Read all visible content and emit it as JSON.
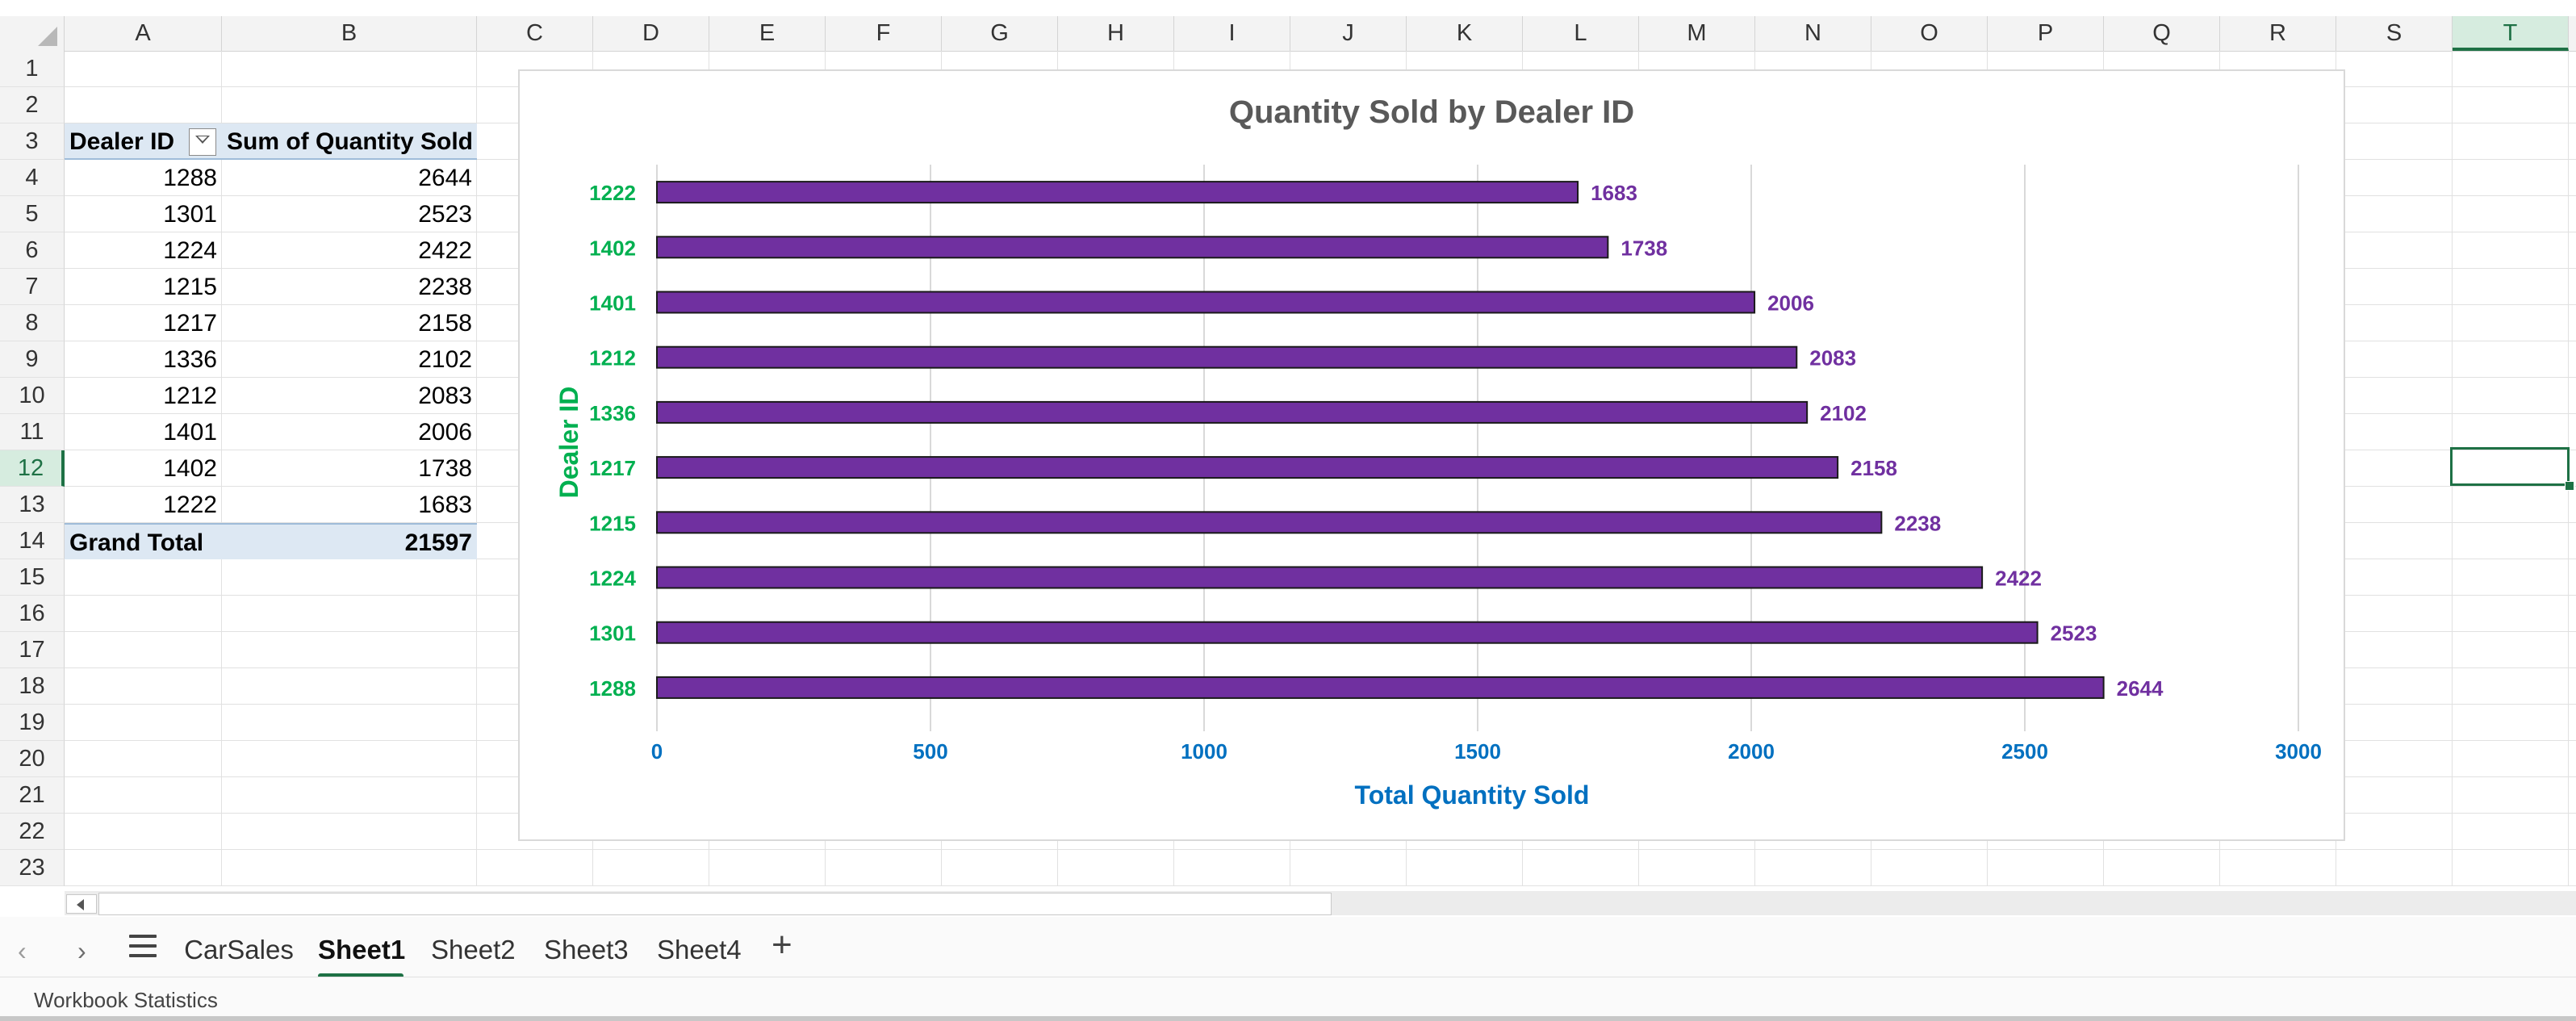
{
  "columns": [
    "A",
    "B",
    "C",
    "D",
    "E",
    "F",
    "G",
    "H",
    "I",
    "J",
    "K",
    "L",
    "M",
    "N",
    "O",
    "P",
    "Q",
    "R",
    "S",
    "T"
  ],
  "selected_column": "T",
  "rows": [
    "1",
    "2",
    "3",
    "4",
    "5",
    "6",
    "7",
    "8",
    "9",
    "10",
    "11",
    "12",
    "13",
    "14",
    "15",
    "16",
    "17",
    "18",
    "19",
    "20",
    "21",
    "22",
    "23"
  ],
  "selected_row": "12",
  "pivot": {
    "header_row": "Dealer ID",
    "header_sum": "Sum of Quantity Sold",
    "rows": [
      {
        "id": "1288",
        "qty": "2644"
      },
      {
        "id": "1301",
        "qty": "2523"
      },
      {
        "id": "1224",
        "qty": "2422"
      },
      {
        "id": "1215",
        "qty": "2238"
      },
      {
        "id": "1217",
        "qty": "2158"
      },
      {
        "id": "1336",
        "qty": "2102"
      },
      {
        "id": "1212",
        "qty": "2083"
      },
      {
        "id": "1401",
        "qty": "2006"
      },
      {
        "id": "1402",
        "qty": "1738"
      },
      {
        "id": "1222",
        "qty": "1683"
      }
    ],
    "total_label": "Grand Total",
    "total_value": "21597"
  },
  "chart_data": {
    "type": "bar",
    "orientation": "horizontal",
    "title": "Quantity Sold by Dealer ID",
    "xlabel": "Total Quantity Sold",
    "ylabel": "Dealer ID",
    "categories": [
      "1222",
      "1402",
      "1401",
      "1212",
      "1336",
      "1217",
      "1215",
      "1224",
      "1301",
      "1288"
    ],
    "values": [
      1683,
      1738,
      2006,
      2083,
      2102,
      2158,
      2238,
      2422,
      2523,
      2644
    ],
    "xlim": [
      0,
      3000
    ],
    "xticks": [
      "0",
      "500",
      "1000",
      "1500",
      "2000",
      "2500",
      "3000"
    ],
    "data_labels": true,
    "grid": "vertical",
    "colors": {
      "bar": "#7030a0",
      "bar_border": "#1a1a1a",
      "title": "#595959",
      "ylabel": "#00b050",
      "xlabel": "#0070c0",
      "data_label": "#7030a0",
      "gridline": "#d9d9d9"
    }
  },
  "tabs": {
    "items": [
      "CarSales",
      "Sheet1",
      "Sheet2",
      "Sheet3",
      "Sheet4"
    ],
    "active": "Sheet1",
    "prev_icon": "‹",
    "next_icon": "›",
    "add_icon": "+"
  },
  "status": {
    "text": "Workbook Statistics"
  },
  "colors": {
    "accent": "#1e7145",
    "pivot_header_bg": "#dde8f3"
  }
}
